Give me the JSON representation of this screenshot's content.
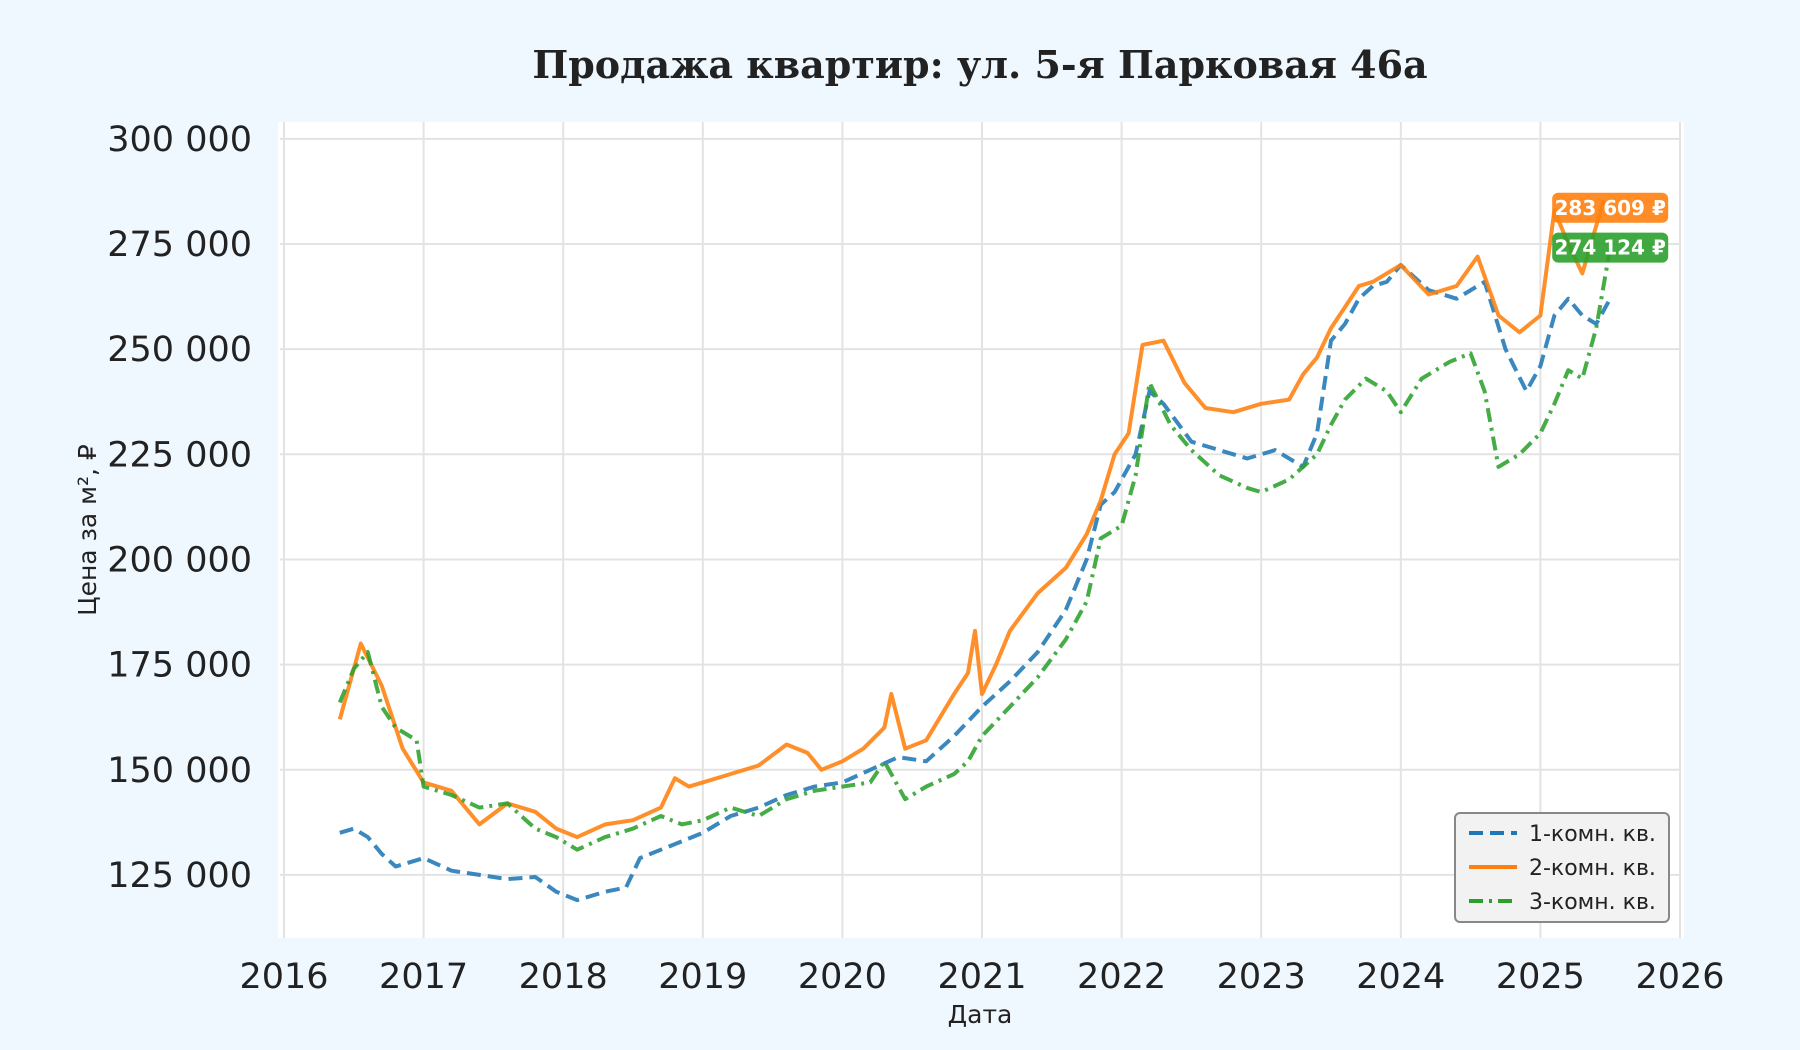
{
  "chart_data": {
    "type": "line",
    "title": "Продажа квартир: ул. 5-я Парковая 46а",
    "xlabel": "Дата",
    "ylabel": "Цена за м², ₽",
    "xlim": [
      2016.0,
      2026.0
    ],
    "ylim": [
      110000,
      304000
    ],
    "x_ticks": [
      "2016",
      "2017",
      "2018",
      "2019",
      "2020",
      "2021",
      "2022",
      "2023",
      "2024",
      "2025",
      "2026"
    ],
    "y_ticks": [
      "125 000",
      "150 000",
      "175 000",
      "200 000",
      "225 000",
      "250 000",
      "275 000",
      "300 000"
    ],
    "y_tick_values": [
      125000,
      150000,
      175000,
      200000,
      225000,
      250000,
      275000,
      300000
    ],
    "grid": true,
    "legend_position": "bottom-right",
    "series": [
      {
        "name": "1-комн. кв.",
        "color": "#1f77b4",
        "style": "dashed",
        "x": [
          2016.4,
          2016.5,
          2016.6,
          2016.7,
          2016.8,
          2017.0,
          2017.2,
          2017.4,
          2017.6,
          2017.8,
          2017.95,
          2018.1,
          2018.3,
          2018.45,
          2018.55,
          2018.7,
          2018.85,
          2019.0,
          2019.2,
          2019.4,
          2019.6,
          2019.8,
          2020.0,
          2020.2,
          2020.4,
          2020.6,
          2020.8,
          2021.0,
          2021.2,
          2021.4,
          2021.6,
          2021.75,
          2021.85,
          2021.95,
          2022.1,
          2022.2,
          2022.3,
          2022.5,
          2022.7,
          2022.9,
          2023.1,
          2023.3,
          2023.4,
          2023.5,
          2023.6,
          2023.7,
          2023.8,
          2023.9,
          2024.0,
          2024.2,
          2024.4,
          2024.6,
          2024.75,
          2024.9,
          2025.0,
          2025.1,
          2025.2,
          2025.3,
          2025.4,
          2025.5
        ],
        "y": [
          135000,
          136000,
          134000,
          130000,
          127000,
          129000,
          126000,
          125000,
          124000,
          124500,
          121000,
          119000,
          121000,
          122000,
          129000,
          131000,
          133000,
          135000,
          139000,
          141000,
          144000,
          146000,
          147000,
          150000,
          153000,
          152000,
          158000,
          165000,
          171000,
          178000,
          188000,
          200000,
          213000,
          216000,
          225000,
          240000,
          237000,
          228000,
          226000,
          224000,
          226000,
          222000,
          230000,
          252000,
          256000,
          262000,
          265000,
          266000,
          270000,
          264000,
          262000,
          266000,
          250000,
          240000,
          246000,
          258000,
          262000,
          258000,
          256000,
          262000
        ]
      },
      {
        "name": "2-комн. кв.",
        "color": "#ff7f0e",
        "style": "solid",
        "x": [
          2016.4,
          2016.55,
          2016.7,
          2016.85,
          2017.0,
          2017.2,
          2017.4,
          2017.6,
          2017.8,
          2017.95,
          2018.1,
          2018.3,
          2018.5,
          2018.7,
          2018.8,
          2018.9,
          2019.0,
          2019.2,
          2019.4,
          2019.6,
          2019.75,
          2019.85,
          2020.0,
          2020.15,
          2020.3,
          2020.35,
          2020.45,
          2020.6,
          2020.8,
          2020.9,
          2020.95,
          2021.0,
          2021.1,
          2021.2,
          2021.4,
          2021.6,
          2021.75,
          2021.85,
          2021.95,
          2022.05,
          2022.15,
          2022.3,
          2022.45,
          2022.6,
          2022.8,
          2023.0,
          2023.2,
          2023.3,
          2023.4,
          2023.5,
          2023.6,
          2023.7,
          2023.8,
          2023.9,
          2024.0,
          2024.2,
          2024.4,
          2024.55,
          2024.7,
          2024.85,
          2025.0,
          2025.1,
          2025.2,
          2025.3,
          2025.45,
          2025.5
        ],
        "y": [
          162000,
          180000,
          170000,
          155000,
          147000,
          145000,
          137000,
          142000,
          140000,
          136000,
          134000,
          137000,
          138000,
          141000,
          148000,
          146000,
          147000,
          149000,
          151000,
          156000,
          154000,
          150000,
          152000,
          155000,
          160000,
          168000,
          155000,
          157000,
          168000,
          173000,
          183000,
          168000,
          175000,
          183000,
          192000,
          198000,
          206000,
          214000,
          225000,
          230000,
          251000,
          252000,
          242000,
          236000,
          235000,
          237000,
          238000,
          244000,
          248000,
          255000,
          260000,
          265000,
          266000,
          268000,
          270000,
          263000,
          265000,
          272000,
          258000,
          254000,
          258000,
          283000,
          275000,
          268000,
          285000,
          283609
        ]
      },
      {
        "name": "3-комн. кв.",
        "color": "#2ca02c",
        "style": "dashdot",
        "x": [
          2016.4,
          2016.5,
          2016.6,
          2016.7,
          2016.8,
          2016.95,
          2017.0,
          2017.2,
          2017.4,
          2017.6,
          2017.8,
          2017.95,
          2018.1,
          2018.3,
          2018.5,
          2018.7,
          2018.85,
          2019.0,
          2019.2,
          2019.4,
          2019.6,
          2019.8,
          2020.0,
          2020.2,
          2020.3,
          2020.45,
          2020.6,
          2020.8,
          2020.9,
          2021.0,
          2021.2,
          2021.4,
          2021.6,
          2021.75,
          2021.85,
          2022.0,
          2022.1,
          2022.2,
          2022.35,
          2022.5,
          2022.7,
          2022.9,
          2023.0,
          2023.2,
          2023.4,
          2023.5,
          2023.6,
          2023.75,
          2023.9,
          2024.0,
          2024.15,
          2024.35,
          2024.5,
          2024.6,
          2024.7,
          2024.85,
          2025.0,
          2025.1,
          2025.2,
          2025.3,
          2025.4,
          2025.5
        ],
        "y": [
          166000,
          174000,
          178000,
          165000,
          160000,
          157000,
          146000,
          144000,
          141000,
          142000,
          136000,
          134000,
          131000,
          134000,
          136000,
          139000,
          137000,
          138000,
          141000,
          139000,
          143000,
          145000,
          146000,
          147000,
          152000,
          143000,
          146000,
          149000,
          152000,
          158000,
          165000,
          172000,
          181000,
          190000,
          205000,
          208000,
          220000,
          242000,
          232000,
          226000,
          220000,
          217000,
          216000,
          219000,
          225000,
          232000,
          238000,
          243000,
          240000,
          235000,
          243000,
          247000,
          249000,
          240000,
          222000,
          225000,
          230000,
          237000,
          245000,
          243000,
          255000,
          274124
        ]
      }
    ],
    "annotations": [
      {
        "text": "283 609 ₽",
        "series": "2-комн. кв.",
        "value": 283609,
        "color": "#ff7f0e"
      },
      {
        "text": "274 124 ₽",
        "series": "3-комн. кв.",
        "value": 274124,
        "color": "#2ca02c"
      }
    ]
  }
}
